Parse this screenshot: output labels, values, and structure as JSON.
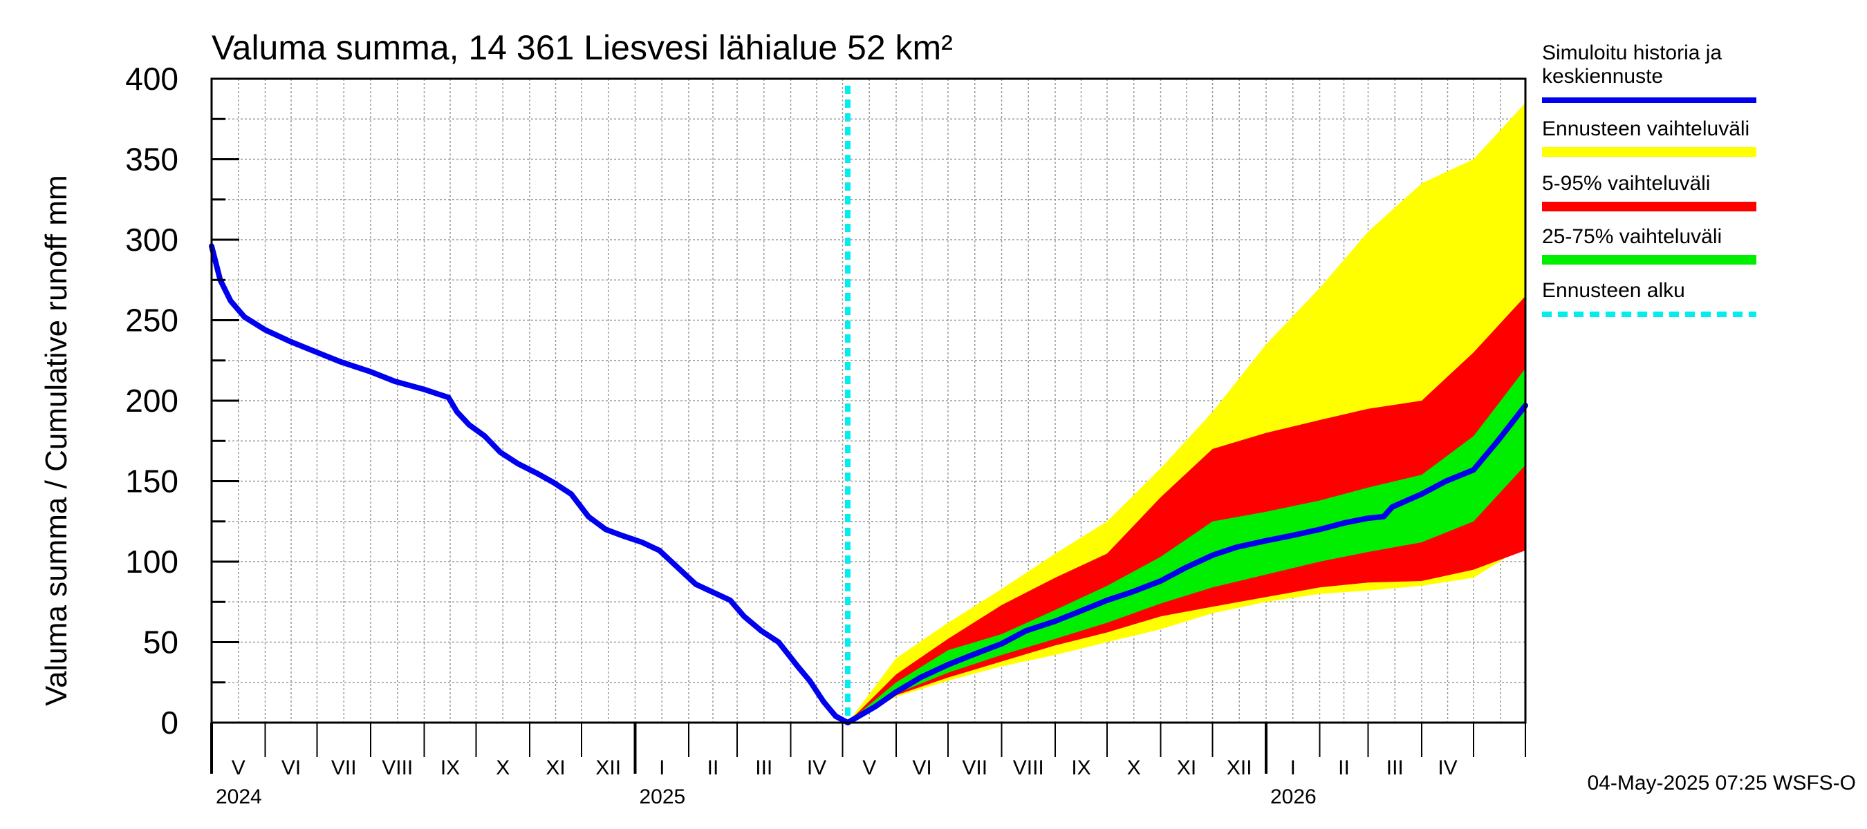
{
  "chart_data": {
    "type": "area",
    "title": "Valuma summa, 14 361 Liesvesi lähialue 52 km²",
    "ylabel": "Valuma summa / Cumulative runoff    mm",
    "ylim": [
      0,
      400
    ],
    "yticks": [
      0,
      50,
      100,
      150,
      200,
      250,
      300,
      350,
      400
    ],
    "grid": true,
    "legend_position": "right",
    "x_start": "2024-05-01",
    "x_end": "2026-05-31",
    "forecast_start": "2025-05-04",
    "month_labels": [
      "V",
      "VI",
      "VII",
      "VIII",
      "IX",
      "X",
      "XI",
      "XII",
      "I",
      "II",
      "III",
      "IV",
      "V",
      "VI",
      "VII",
      "VIII",
      "IX",
      "X",
      "XI",
      "XII",
      "I",
      "II",
      "III",
      "IV"
    ],
    "year_labels": [
      {
        "label": "2024",
        "date": "2024-05-01"
      },
      {
        "label": "2025",
        "date": "2025-01-01"
      },
      {
        "label": "2026",
        "date": "2026-01-01"
      }
    ],
    "history": {
      "name": "Simuloitu historia ja keskiennuste",
      "x": [
        "2024-05-01",
        "2024-05-06",
        "2024-05-12",
        "2024-05-20",
        "2024-06-01",
        "2024-06-15",
        "2024-07-01",
        "2024-07-15",
        "2024-08-01",
        "2024-08-15",
        "2024-09-01",
        "2024-09-15",
        "2024-09-20",
        "2024-09-27",
        "2024-10-06",
        "2024-10-15",
        "2024-10-25",
        "2024-11-05",
        "2024-11-15",
        "2024-11-25",
        "2024-12-05",
        "2024-12-15",
        "2024-12-25",
        "2025-01-05",
        "2025-01-15",
        "2025-01-25",
        "2025-02-05",
        "2025-02-15",
        "2025-02-25",
        "2025-03-05",
        "2025-03-15",
        "2025-03-25",
        "2025-04-05",
        "2025-04-12",
        "2025-04-20",
        "2025-04-27",
        "2025-05-04"
      ],
      "values": [
        296,
        275,
        262,
        252,
        244,
        237,
        230,
        224,
        218,
        212,
        207,
        202,
        193,
        185,
        178,
        168,
        161,
        155,
        149,
        142,
        128,
        120,
        116,
        112,
        107,
        97,
        86,
        81,
        76,
        66,
        57,
        50,
        35,
        26,
        13,
        4,
        0
      ]
    },
    "median_forecast": {
      "x": [
        "2025-05-04",
        "2025-05-20",
        "2025-06-01",
        "2025-06-15",
        "2025-07-01",
        "2025-07-15",
        "2025-08-01",
        "2025-08-15",
        "2025-09-01",
        "2025-09-15",
        "2025-10-01",
        "2025-10-15",
        "2025-11-01",
        "2025-11-15",
        "2025-12-01",
        "2025-12-15",
        "2026-01-01",
        "2026-01-15",
        "2026-02-01",
        "2026-02-15",
        "2026-03-01",
        "2026-03-10",
        "2026-03-15",
        "2026-04-01",
        "2026-04-15",
        "2026-05-01",
        "2026-05-15",
        "2026-05-31"
      ],
      "values": [
        0,
        10,
        19,
        28,
        36,
        42,
        49,
        57,
        63,
        69,
        76,
        81,
        88,
        96,
        104,
        109,
        113,
        116,
        120,
        124,
        127,
        128,
        134,
        142,
        150,
        157,
        175,
        197
      ]
    },
    "bands": {
      "x": [
        "2025-05-04",
        "2025-06-01",
        "2025-07-01",
        "2025-08-01",
        "2025-09-01",
        "2025-10-01",
        "2025-11-01",
        "2025-12-01",
        "2026-01-01",
        "2026-02-01",
        "2026-03-01",
        "2026-04-01",
        "2026-05-01",
        "2026-05-31"
      ],
      "full": {
        "name": "Ennusteen vaihteluväli",
        "low": [
          0,
          16,
          26,
          35,
          42,
          50,
          58,
          68,
          75,
          80,
          82,
          85,
          90,
          110
        ],
        "high": [
          0,
          40,
          62,
          83,
          105,
          125,
          158,
          193,
          235,
          270,
          305,
          335,
          350,
          385
        ]
      },
      "p5_95": {
        "name": "5-95% vaihteluväli",
        "low": [
          0,
          17,
          28,
          38,
          48,
          56,
          66,
          72,
          78,
          84,
          87,
          88,
          95,
          107
        ],
        "high": [
          0,
          30,
          52,
          73,
          90,
          105,
          140,
          170,
          180,
          188,
          195,
          200,
          230,
          265
        ]
      },
      "p25_75": {
        "name": "25-75% vaihteluväli",
        "low": [
          0,
          18,
          31,
          42,
          52,
          62,
          74,
          84,
          92,
          100,
          106,
          112,
          125,
          160
        ],
        "high": [
          0,
          25,
          45,
          55,
          70,
          85,
          103,
          125,
          131,
          138,
          146,
          154,
          178,
          220
        ]
      }
    },
    "series_colors": {
      "history": "#0000ee",
      "full": "#ffff00",
      "p5_95": "#ff0000",
      "p25_75": "#00ee00",
      "forecast_start": "#00eeee"
    }
  },
  "legend": [
    {
      "label": "Simuloitu historia ja keskiennuste",
      "color": "#0000ee",
      "style": "solid"
    },
    {
      "label": "Ennusteen vaihteluväli",
      "color": "#ffff00",
      "style": "solid"
    },
    {
      "label": "5-95% vaihteluväli",
      "color": "#ff0000",
      "style": "solid"
    },
    {
      "label": "25-75% vaihteluväli",
      "color": "#00ee00",
      "style": "solid"
    },
    {
      "label": "Ennusteen alku",
      "color": "#00eeee",
      "style": "dashed"
    }
  ],
  "footer": "04-May-2025 07:25 WSFS-O"
}
